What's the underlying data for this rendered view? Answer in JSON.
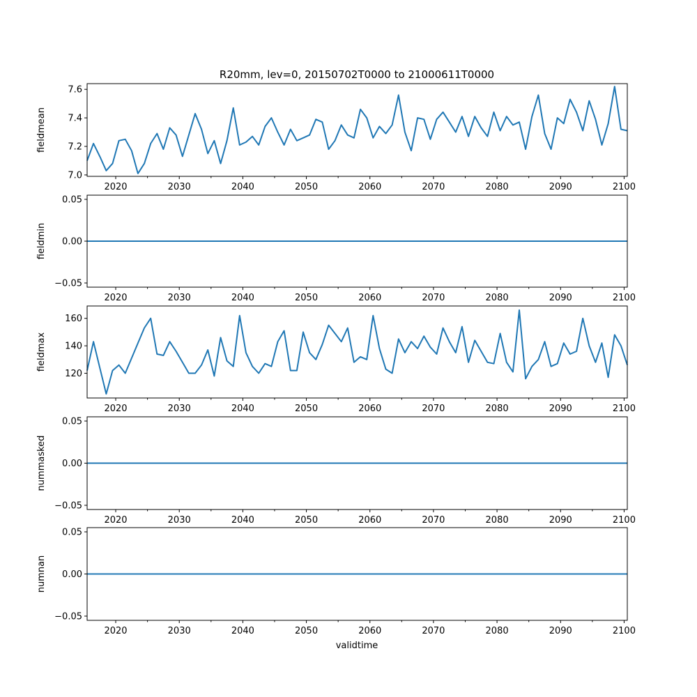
{
  "chart_data": {
    "type": "line",
    "title": "R20mm, lev=0, 20150702T0000 to 21000611T0000",
    "xlabel": "validtime",
    "xlim": [
      2015.5,
      2100.5
    ],
    "x_ticks": [
      2020,
      2030,
      2040,
      2050,
      2060,
      2070,
      2080,
      2090,
      2100
    ],
    "x_tick_labels": [
      "2020",
      "2030",
      "2040",
      "2050",
      "2060",
      "2070",
      "2080",
      "2090",
      "2100"
    ],
    "x": [
      2015.5,
      2016.5,
      2017.5,
      2018.5,
      2019.5,
      2020.5,
      2021.5,
      2022.5,
      2023.5,
      2024.5,
      2025.5,
      2026.5,
      2027.5,
      2028.5,
      2029.5,
      2030.5,
      2031.5,
      2032.5,
      2033.5,
      2034.5,
      2035.5,
      2036.5,
      2037.5,
      2038.5,
      2039.5,
      2040.5,
      2041.5,
      2042.5,
      2043.5,
      2044.5,
      2045.5,
      2046.5,
      2047.5,
      2048.5,
      2049.5,
      2050.5,
      2051.5,
      2052.5,
      2053.5,
      2054.5,
      2055.5,
      2056.5,
      2057.5,
      2058.5,
      2059.5,
      2060.5,
      2061.5,
      2062.5,
      2063.5,
      2064.5,
      2065.5,
      2066.5,
      2067.5,
      2068.5,
      2069.5,
      2070.5,
      2071.5,
      2072.5,
      2073.5,
      2074.5,
      2075.5,
      2076.5,
      2077.5,
      2078.5,
      2079.5,
      2080.5,
      2081.5,
      2082.5,
      2083.5,
      2084.5,
      2085.5,
      2086.5,
      2087.5,
      2088.5,
      2089.5,
      2090.5,
      2091.5,
      2092.5,
      2093.5,
      2094.5,
      2095.5,
      2096.5,
      2097.5,
      2098.5,
      2099.5,
      2100.5
    ],
    "panels": [
      {
        "ylabel": "fieldmean",
        "ylim": [
          6.99,
          7.64
        ],
        "y_ticks": [
          7.0,
          7.2,
          7.4,
          7.6
        ],
        "y_tick_labels": [
          "7.0",
          "7.2",
          "7.4",
          "7.6"
        ],
        "values": [
          7.1,
          7.22,
          7.13,
          7.03,
          7.08,
          7.24,
          7.25,
          7.17,
          7.01,
          7.08,
          7.22,
          7.29,
          7.18,
          7.33,
          7.28,
          7.13,
          7.28,
          7.43,
          7.32,
          7.15,
          7.24,
          7.08,
          7.24,
          7.47,
          7.21,
          7.23,
          7.27,
          7.21,
          7.34,
          7.4,
          7.3,
          7.21,
          7.32,
          7.24,
          7.26,
          7.28,
          7.39,
          7.37,
          7.18,
          7.24,
          7.35,
          7.28,
          7.26,
          7.46,
          7.4,
          7.26,
          7.34,
          7.29,
          7.35,
          7.56,
          7.3,
          7.17,
          7.4,
          7.39,
          7.25,
          7.39,
          7.44,
          7.37,
          7.3,
          7.41,
          7.27,
          7.41,
          7.33,
          7.27,
          7.44,
          7.31,
          7.41,
          7.35,
          7.37,
          7.18,
          7.41,
          7.56,
          7.29,
          7.18,
          7.4,
          7.36,
          7.53,
          7.44,
          7.31,
          7.52,
          7.39,
          7.21,
          7.36,
          7.62,
          7.32,
          7.31
        ]
      },
      {
        "ylabel": "fieldmin",
        "ylim": [
          -0.055,
          0.055
        ],
        "y_ticks": [
          -0.05,
          0.0,
          0.05
        ],
        "y_tick_labels": [
          "−0.05",
          "0.00",
          "0.05"
        ],
        "values": "all 0.00"
      },
      {
        "ylabel": "fieldmax",
        "ylim": [
          102,
          169
        ],
        "y_ticks": [
          120,
          140,
          160
        ],
        "y_tick_labels": [
          "120",
          "140",
          "160"
        ],
        "values": [
          122,
          143,
          124,
          105,
          122,
          126,
          120,
          131,
          142,
          153,
          160,
          134,
          133,
          143,
          136,
          128,
          120,
          120,
          126,
          137,
          118,
          146,
          129,
          125,
          162,
          135,
          125,
          120,
          127,
          125,
          143,
          151,
          122,
          122,
          150,
          135,
          130,
          141,
          155,
          149,
          143,
          153,
          128,
          132,
          130,
          162,
          138,
          123,
          120,
          145,
          135,
          143,
          138,
          147,
          139,
          134,
          153,
          143,
          135,
          154,
          128,
          144,
          136,
          128,
          127,
          149,
          128,
          121,
          166,
          116,
          125,
          130,
          143,
          125,
          127,
          142,
          134,
          136,
          160,
          140,
          128,
          142,
          117,
          148,
          140,
          126
        ]
      },
      {
        "ylabel": "nummasked",
        "ylim": [
          -0.055,
          0.055
        ],
        "y_ticks": [
          -0.05,
          0.0,
          0.05
        ],
        "y_tick_labels": [
          "−0.05",
          "0.00",
          "0.05"
        ],
        "values": "all 0.00"
      },
      {
        "ylabel": "numnan",
        "ylim": [
          -0.055,
          0.055
        ],
        "y_ticks": [
          -0.05,
          0.0,
          0.05
        ],
        "y_tick_labels": [
          "−0.05",
          "0.00",
          "0.05"
        ],
        "values": "all 0.00"
      }
    ],
    "line_color": "#1f77b4",
    "grid": false
  }
}
